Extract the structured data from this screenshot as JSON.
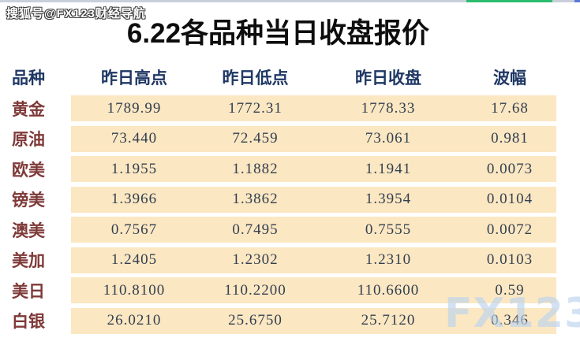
{
  "page": {
    "watermark_top": "搜狐号@FX123财经导航",
    "watermark_bottom": "FX123",
    "title_prefix": "6.22",
    "title_text": "各品种当日收盘报价"
  },
  "chart_data": {
    "type": "table",
    "title": "6.22各品种当日收盘报价",
    "columns": [
      "品种",
      "昨日高点",
      "昨日低点",
      "昨日收盘",
      "波幅"
    ],
    "rows": [
      {
        "name": "黄金",
        "high": "1789.99",
        "low": "1772.31",
        "close": "1778.33",
        "range": "17.68"
      },
      {
        "name": "原油",
        "high": "73.440",
        "low": "72.459",
        "close": "73.061",
        "range": "0.981"
      },
      {
        "name": "欧美",
        "high": "1.1955",
        "low": "1.1882",
        "close": "1.1941",
        "range": "0.0073"
      },
      {
        "name": "镑美",
        "high": "1.3966",
        "low": "1.3862",
        "close": "1.3954",
        "range": "0.0104"
      },
      {
        "name": "澳美",
        "high": "0.7567",
        "low": "0.7495",
        "close": "0.7555",
        "range": "0.0072"
      },
      {
        "name": "美加",
        "high": "1.2405",
        "low": "1.2302",
        "close": "1.2310",
        "range": "0.0103"
      },
      {
        "name": "美日",
        "high": "110.8100",
        "low": "110.2200",
        "close": "110.6600",
        "range": "0.59"
      },
      {
        "name": "白银",
        "high": "26.0210",
        "low": "25.6750",
        "close": "25.7120",
        "range": "0.346"
      }
    ]
  },
  "colors": {
    "header_text": "#1F3864",
    "label_text": "#7E3A38",
    "value_text": "#333F50",
    "band_bg": "#FBE7C2",
    "progress_green": "#2ABD6E",
    "progress_track": "#C9CFDB",
    "watermark_blue": "#BCD4EE"
  }
}
